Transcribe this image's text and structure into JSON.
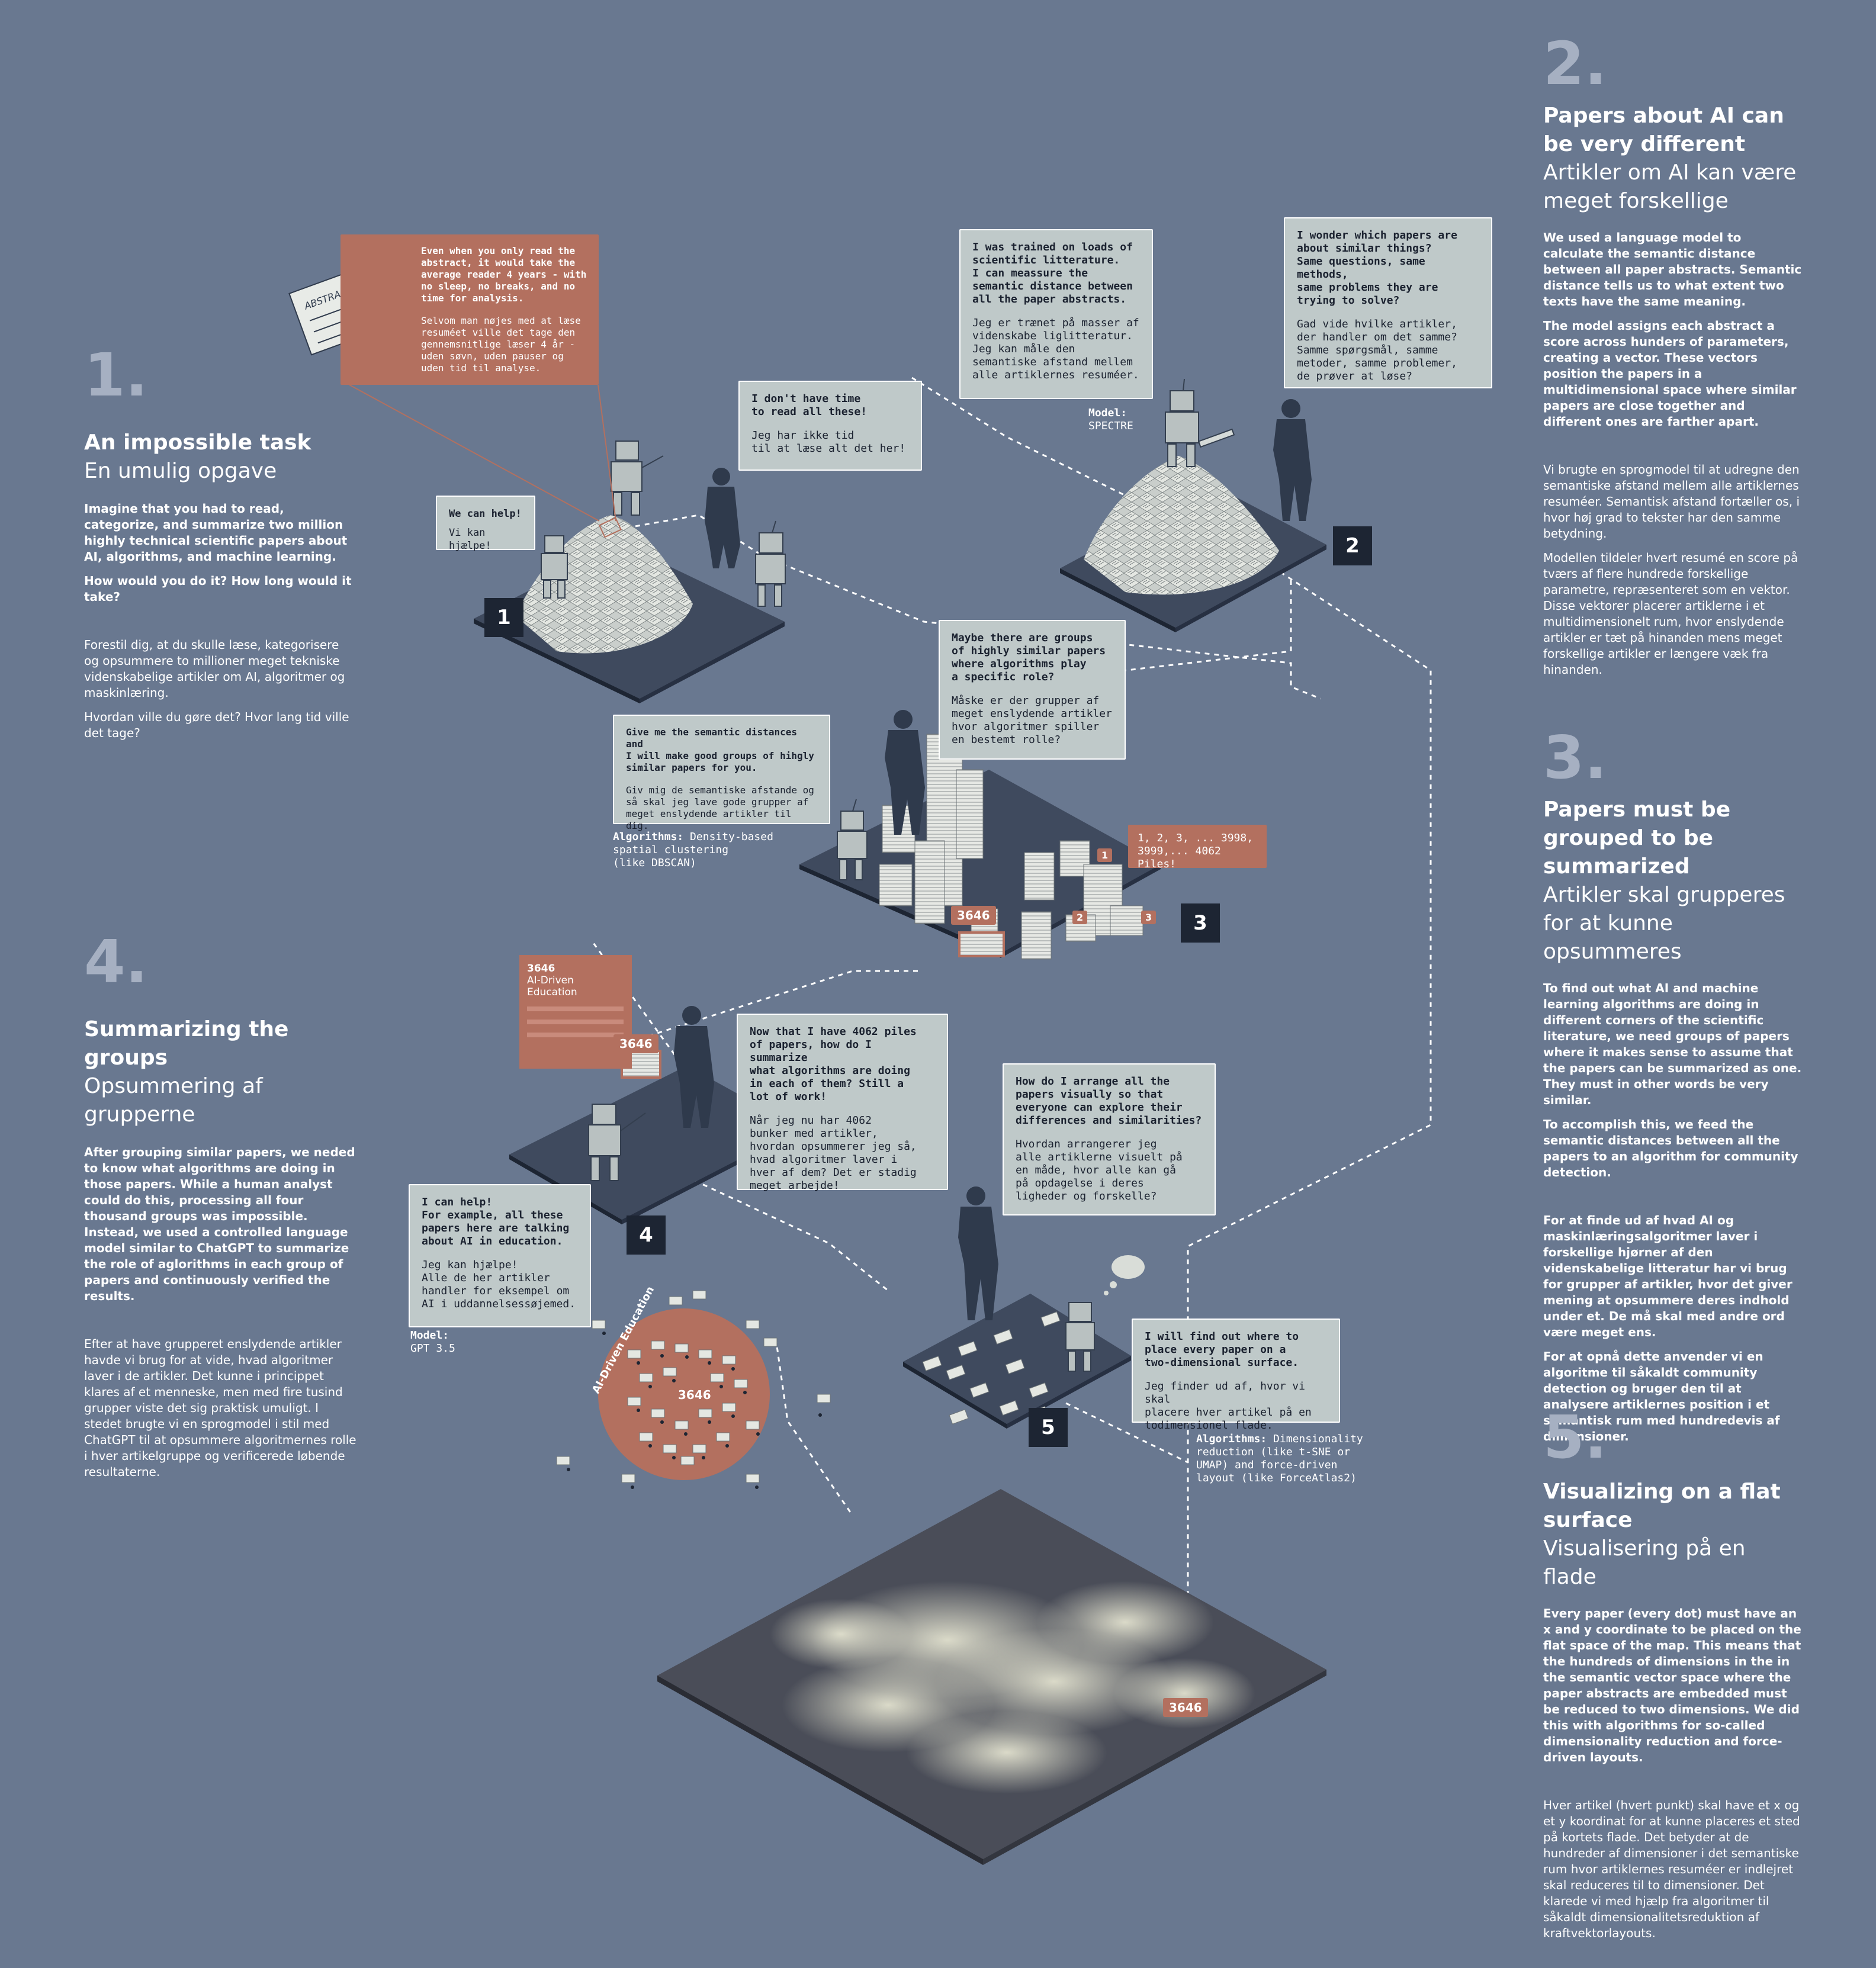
{
  "sections": {
    "s1": {
      "num": "1.",
      "title": "An impossible task",
      "subtitle": "En umulig opgave",
      "en_para1": "Imagine that you had to read, categorize, and summarize two million highly technical scientific papers about AI, algorithms, and machine learning.",
      "en_para2": "How would you do it? How long would it take?",
      "da_para1": "Forestil dig, at du skulle læse, kategorisere og opsummere to millioner meget tekniske videnskabelige artikler om AI, algoritmer og maskinlæring.",
      "da_para2": "Hvordan ville du gøre det? Hvor lang tid ville det tage?"
    },
    "s2": {
      "num": "2.",
      "title": "Papers about AI can be very different",
      "subtitle": "Artikler om AI kan være meget forskellige",
      "en_para1": "We used a language model to calculate the semantic distance between all paper abstracts. Semantic distance tells us to what extent two texts have the same meaning.",
      "en_para2": "The model assigns each abstract a score across hunders of parameters, creating a vector. These vectors position the papers in a multidimensional space where similar papers are close together and different ones are farther apart.",
      "da_para1": "Vi brugte en sprogmodel til at udregne den semantiske afstand mellem alle artiklernes resuméer. Semantisk afstand fortæller os, i hvor høj grad to tekster har den samme betydning.",
      "da_para2": "Modellen tildeler hvert resumé en score på tværs af flere hundrede forskellige parametre, repræsenteret som en vektor. Disse vektorer placerer artiklerne i et multidimensionelt rum, hvor enslydende artikler er tæt på hinanden mens meget forskellige artikler er længere væk fra hinanden."
    },
    "s3": {
      "num": "3.",
      "title": "Papers must be grouped to be summarized",
      "subtitle": "Artikler skal grupperes for at kunne opsummeres",
      "en_para1": "To find out what AI and machine learning algorithms are doing in different corners of the scientific literature, we need groups of papers where it makes sense to assume that the papers can be summarized as one. They must in other words be very similar.",
      "en_para2": "To accomplish this, we feed the semantic distances between all the papers to an algorithm for community detection.",
      "da_para1": "For at finde ud af hvad AI og maskinlæringsalgoritmer laver i forskellige hjørner af den videnskabelige litteratur har vi brug for grupper af artikler, hvor det giver mening at opsummere deres indhold under et. De må skal med andre ord være meget ens.",
      "da_para2": "For at opnå dette anvender vi en algoritme til såkaldt community detection og bruger den til at analysere artiklernes position i et semantisk rum med hundredevis af dimensioner."
    },
    "s4": {
      "num": "4.",
      "title": "Summarizing the groups",
      "subtitle": "Opsummering af grupperne",
      "en_para1": "After grouping similar papers, we neded to know what algorithms are doing in those papers. While a human analyst could do this, processing all four thousand groups was impossible. Instead, we used a controlled language model similar to ChatGPT to summarize the role of aglorithms in each group of papers and continuously verified the results.",
      "da_para1": "Efter at have grupperet enslydende artikler havde vi brug for at vide, hvad algoritmer laver i de artikler. Det kunne i princippet klares af et menneske, men med fire tusind grupper viste det sig praktisk umuligt. I stedet brugte vi en sprogmodel i stil med ChatGPT til at opsummere algoritmernes rolle i hver artikelgruppe og verificerede løbende resultaterne."
    },
    "s5": {
      "num": "5.",
      "title": "Visualizing on a flat surface",
      "subtitle": "Visualisering på en flade",
      "en_para1": "Every paper (every dot) must have an x and y coordinate to be placed on the flat space of the map. This means that the hundreds of dimensions in the in the semantic vector space where the paper abstracts are embedded must be reduced to two dimensions. We did this with algorithms for so-called dimensionality reduction and force-driven layouts.",
      "da_para1": "Hver artikel (hvert punkt) skal have et x og et y koordinat for at kunne placeres et sted på kortets flade. Det betyder at de hundreder af dimensioner i det semantiske rum hvor artiklernes resuméer er indlejret skal reduceres til to dimensioner. Det klarede vi med hjælp fra algoritmer til såkaldt dimensionalitetsreduktion af kraftvektorlayouts."
    }
  },
  "bubbles": {
    "abstract": {
      "en": "Even when you only read the abstract, it would take the average reader 4 years - with no sleep, no breaks, and no time for analysis.",
      "da": "Selvom man nøjes med at læse resuméet ville det tage den gennemsnitlige læser 4 år - uden søvn, uden pauser og uden tid til analyse."
    },
    "no_time": {
      "en": "I don't have time\nto read all these!",
      "da": "Jeg har ikke tid\ntil at læse alt det her!"
    },
    "we_can_help": {
      "en": "We can help!",
      "da": "Vi kan hjælpe!"
    },
    "trained": {
      "en": "I was trained on loads of\nscientific litterature.\nI can meassure the\nsemantic distance between\nall the paper abstracts.",
      "da": "Jeg er trænet på masser af\nvidenskabe liglitteratur.\nJeg kan måle den\nsemantiske afstand mellem\nalle artiklernes resuméer."
    },
    "wonder": {
      "en": "I wonder which papers are\nabout similar things?\nSame questions, same methods,\nsame problems they are\ntrying to solve?",
      "da": "Gad vide hvilke artikler,\nder handler om det samme?\nSamme spørgsmål, samme\nmetoder, samme problemer,\nde prøver at løse?"
    },
    "groups_role": {
      "en": "Maybe there are groups\nof highly similar papers\nwhere algorithms play\na specific role?",
      "da": "Måske er der grupper af\nmeget enslydende artikler\nhvor algoritmer spiller\nen bestemt rolle?"
    },
    "give_me": {
      "en": "Give me the semantic distances and\nI will make good groups of hihgly\nsimilar papers for you.",
      "da": "Giv mig de semantiske afstande og\nså skal jeg lave gode grupper af\nmeget enslydende artikler til dig."
    },
    "piles": {
      "en": "1, 2, 3, ... 3998,\n3999,... 4062 Piles!"
    },
    "summarize": {
      "en": "Now that I have 4062 piles\nof papers, how do I summarize\nwhat algorithms are doing\nin each of them? Still a\nlot of work!",
      "da": "Når jeg nu har 4062\nbunker med artikler,\nhvordan opsummerer jeg så,\nhvad algoritmer laver i\nhver af dem? Det er stadig\nmeget arbejde!"
    },
    "education": {
      "en": "I can help!\nFor example, all these\npapers here are talking\nabout AI in education.",
      "da": "Jeg kan hjælpe!\nAlle de her artikler\nhandler for eksempel om\nAI i uddannelsessøjemed."
    },
    "arrange": {
      "en": "How do I arrange all the\npapers visually so that\neveryone can explore their\ndifferences and similarities?",
      "da": "Hvordan arrangerer jeg\nalle artiklerne visuelt på\nen måde, hvor alle kan gå\npå opdagelse i deres\nligheder og forskelle?"
    },
    "place": {
      "en": "I will find out where to\nplace every paper on a\ntwo-dimensional surface.",
      "da": "Jeg finder ud af, hvor vi skal\nplacere hver artikel på en\ntodimensionel flade."
    }
  },
  "notes": {
    "model2_label": "Model:",
    "model2_value": "SPECTRE",
    "algo3_label": "Algorithms:",
    "algo3_value": " Density-based\nspatial clustering\n(like DBSCAN)",
    "model4_label": "Model:",
    "model4_value": "GPT 3.5",
    "algo5_label": "Algorithms:",
    "algo5_value": " Dimensionality\nreduction (like t-SNE or\nUMAP) and force-driven\nlayout (like ForceAtlas2)"
  },
  "steps": [
    "1",
    "2",
    "3",
    "4",
    "5"
  ],
  "labels": {
    "abstract_paper": "ABSTRACT",
    "cluster_id": "3646",
    "pile_1": "1",
    "pile_2": "2",
    "pile_3": "3",
    "cluster_card_id": "3646",
    "cluster_card_name": "AI-Driven\nEducation",
    "circle_label": "AI-Driven Education"
  },
  "colors": {
    "background": "#697890",
    "platform_top": "#3f4a5e",
    "platform_side": "#1d2533",
    "accent_red": "#b3705f",
    "bubble_fill": "#bfc9c9",
    "section_number": "#a6b0c2"
  }
}
